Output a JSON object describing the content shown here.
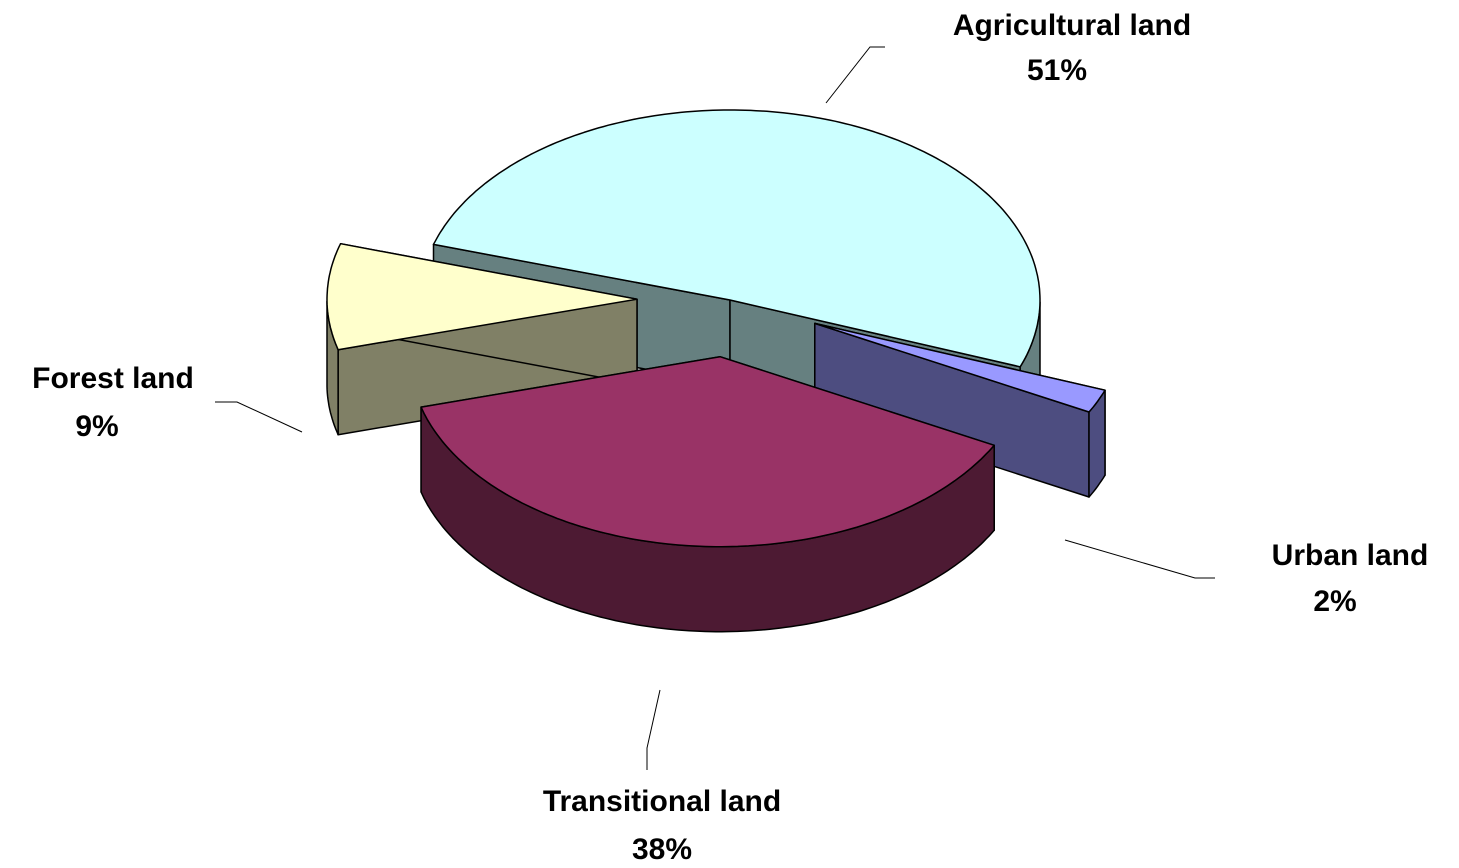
{
  "chart_data": {
    "type": "pie3d",
    "categories": [
      "Agricultural land",
      "Urban land",
      "Transitional land",
      "Forest land"
    ],
    "values": [
      51,
      2,
      38,
      9
    ],
    "value_labels": [
      "51%",
      "2%",
      "38%",
      "9%"
    ],
    "colors": [
      "#ccffff",
      "#9999ff",
      "#993366",
      "#ffffcc"
    ]
  }
}
